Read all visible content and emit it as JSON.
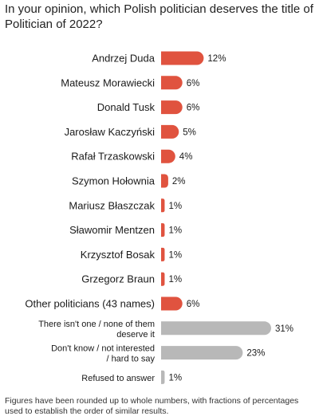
{
  "chart_data": {
    "type": "bar",
    "orientation": "horizontal",
    "title": "In your opinion, which Polish politician deserves the title of Politician of 2022?",
    "footnote": "Figures have been rounded up to whole numbers, with fractions of percentages used to establish the order of similar results.",
    "categories": [
      "Andrzej Duda",
      "Mateusz Morawiecki",
      "Donald Tusk",
      "Jarosław Kaczyński",
      "Rafał Trzaskowski",
      "Szymon Hołownia",
      "Mariusz Błaszczak",
      "Sławomir Mentzen",
      "Krzysztof Bosak",
      "Grzegorz Braun",
      "Other politicians (43 names)",
      "There isn't one / none of them deserve it",
      "Don't know / not interested / hard to say",
      "Refused to answer"
    ],
    "values": [
      12,
      6,
      6,
      5,
      4,
      2,
      1,
      1,
      1,
      1,
      6,
      31,
      23,
      1
    ],
    "value_labels": [
      "12%",
      "6%",
      "6%",
      "5%",
      "4%",
      "2%",
      "1%",
      "1%",
      "1%",
      "1%",
      "6%",
      "31%",
      "23%",
      "1%"
    ],
    "bar_colors": [
      "#e0533f",
      "#e0533f",
      "#e0533f",
      "#e0533f",
      "#e0533f",
      "#e0533f",
      "#e0533f",
      "#e0533f",
      "#e0533f",
      "#e0533f",
      "#e0533f",
      "#b8b8b8",
      "#b8b8b8",
      "#b8b8b8"
    ],
    "unit": "%",
    "xlim": [
      0,
      31
    ],
    "grid": false,
    "legend": "none"
  }
}
